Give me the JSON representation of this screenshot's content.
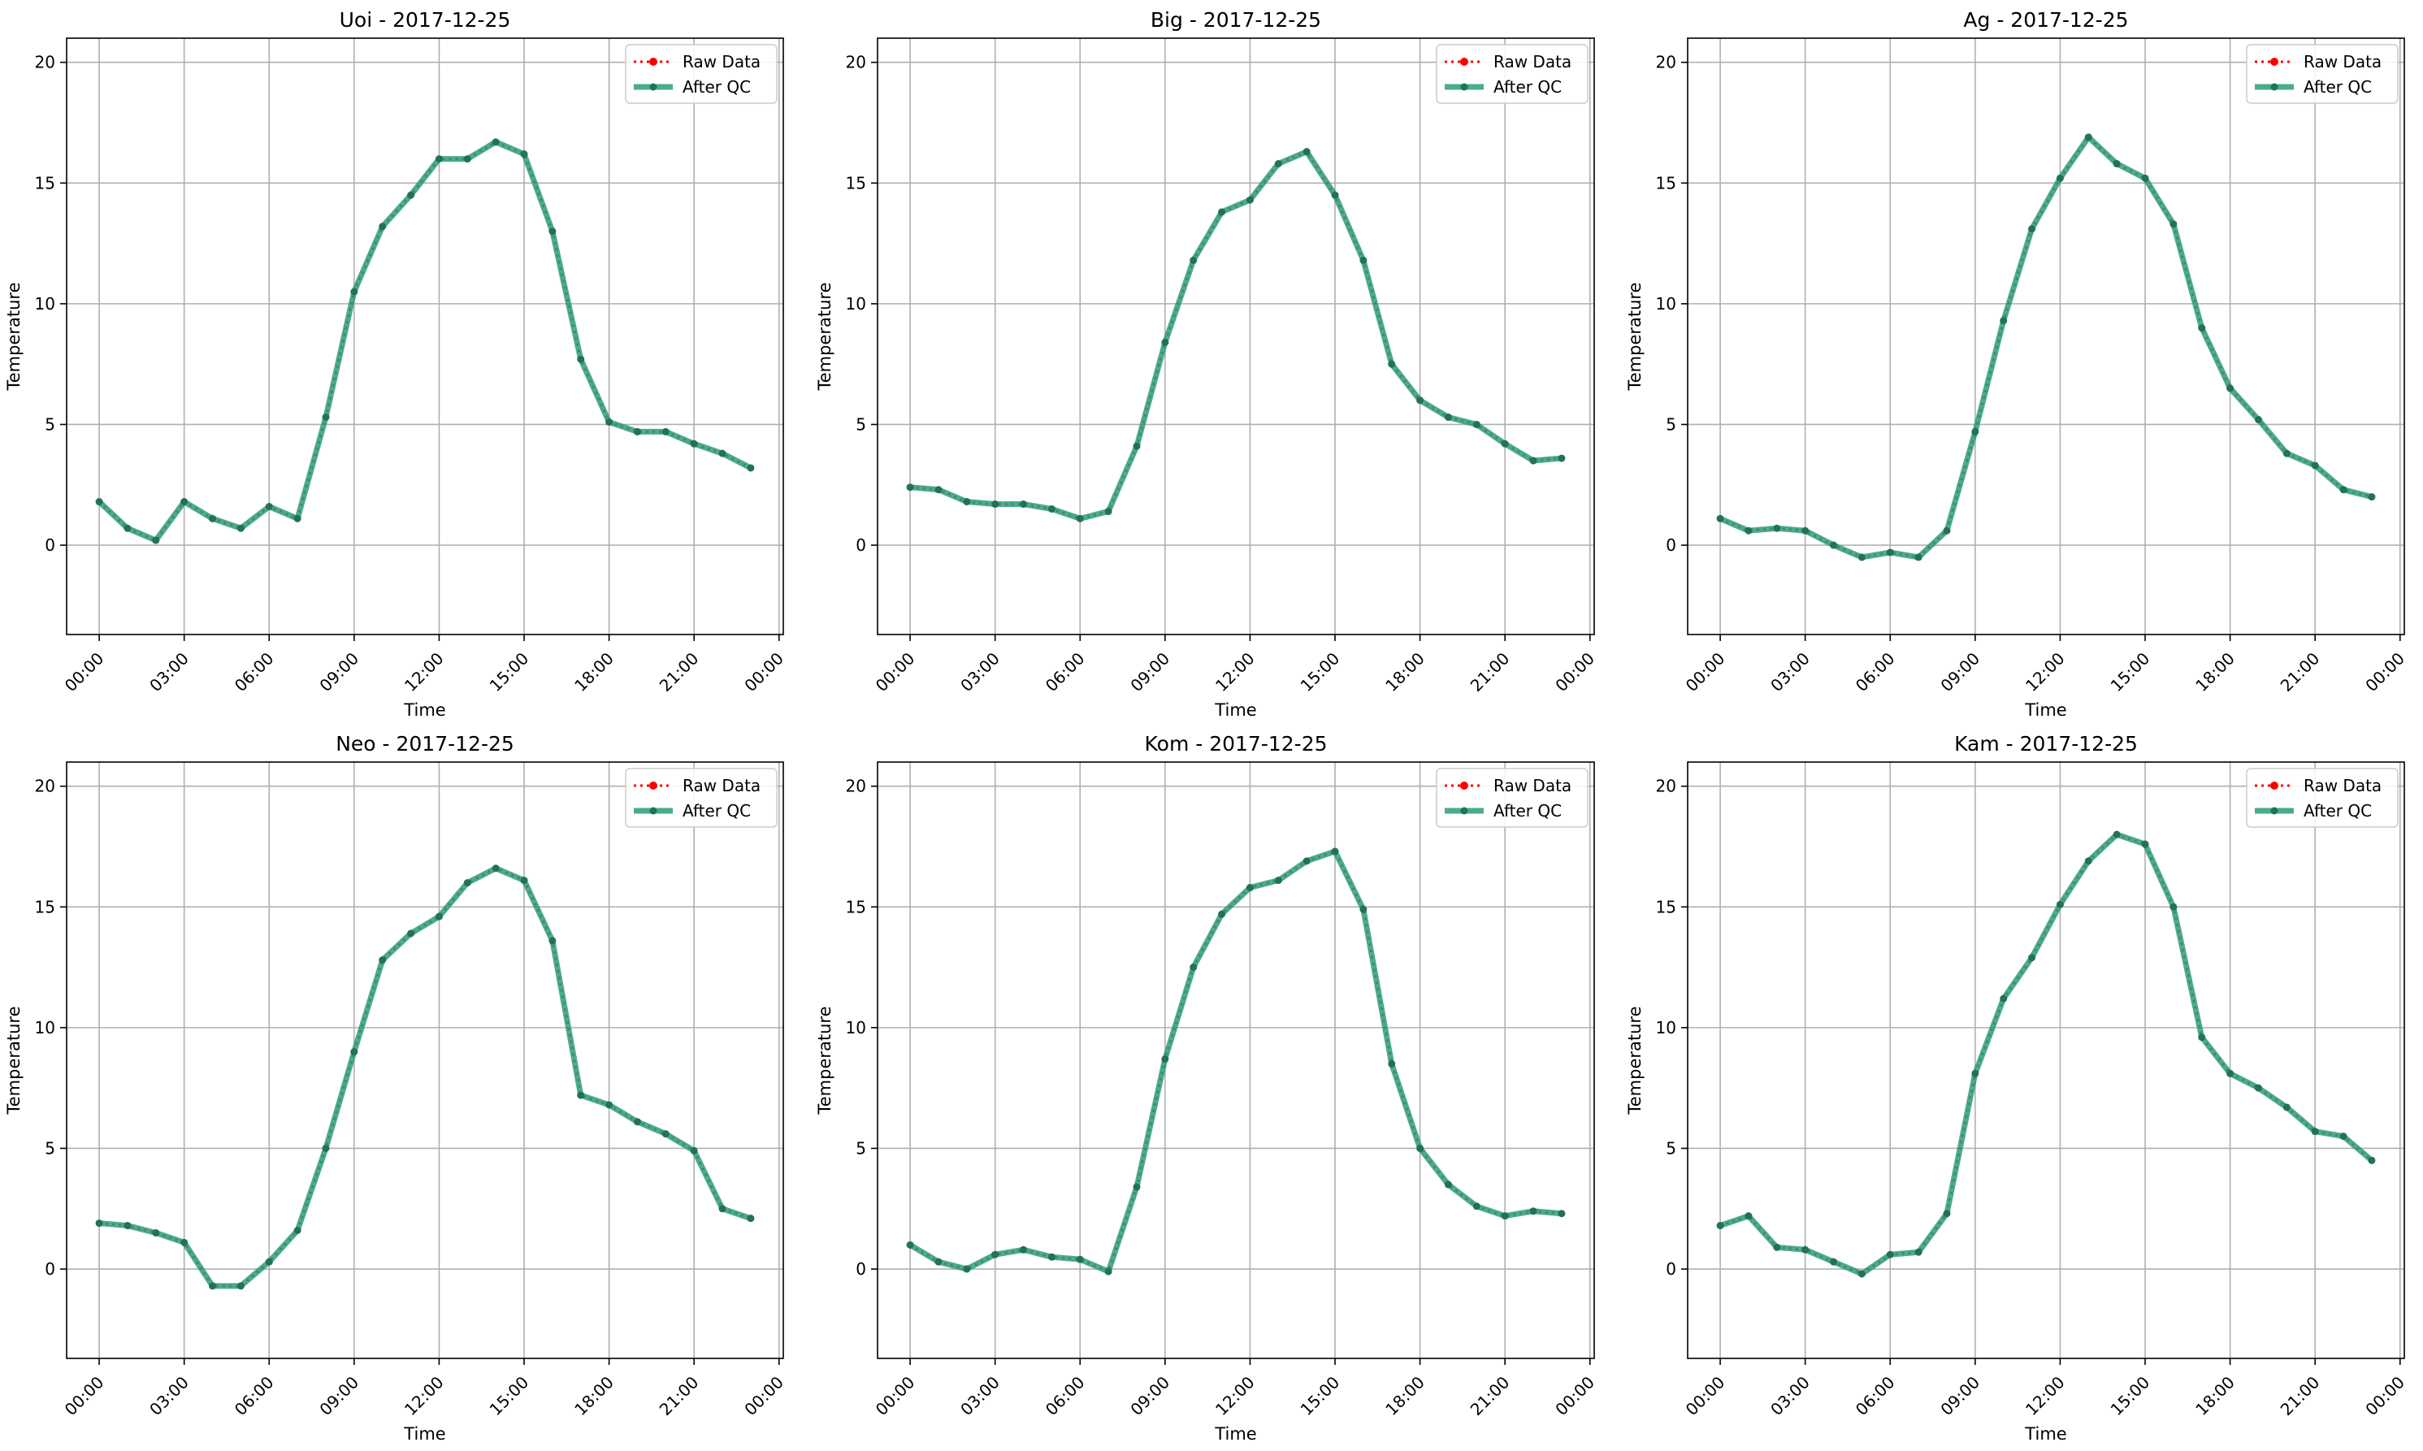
{
  "figure": {
    "time_label": "Time",
    "ylabel": "Temperature",
    "x_ticks": [
      "00:00",
      "03:00",
      "06:00",
      "09:00",
      "12:00",
      "15:00",
      "18:00",
      "21:00",
      "00:00"
    ],
    "y_ticks": [
      "0",
      "5",
      "10",
      "15",
      "20"
    ],
    "legend": {
      "raw": "Raw Data",
      "qc": "After QC"
    }
  },
  "colors": {
    "raw": "#ff0000",
    "qc": "#2a9d76",
    "marker": "#23715a",
    "grid": "#b0b0b0",
    "axes": "#000000"
  },
  "chart_data": [
    {
      "type": "line",
      "title": "Uoi - 2017-12-25",
      "xlabel": "Time",
      "ylabel": "Temperature",
      "x": [
        "00:00",
        "01:00",
        "02:00",
        "03:00",
        "04:00",
        "05:00",
        "06:00",
        "07:00",
        "08:00",
        "09:00",
        "10:00",
        "11:00",
        "12:00",
        "13:00",
        "14:00",
        "15:00",
        "16:00",
        "17:00",
        "18:00",
        "19:00",
        "20:00",
        "21:00",
        "22:00",
        "23:00"
      ],
      "x_ticks": [
        "00:00",
        "03:00",
        "06:00",
        "09:00",
        "12:00",
        "15:00",
        "18:00",
        "21:00",
        "00:00"
      ],
      "ylim": [
        -3.7,
        21
      ],
      "y_ticks": [
        0,
        5,
        10,
        15,
        20
      ],
      "grid": true,
      "legend_position": "top-right",
      "series": [
        {
          "name": "Raw Data",
          "values": [
            1.8,
            0.7,
            0.2,
            1.8,
            1.1,
            0.7,
            1.6,
            1.1,
            5.3,
            10.5,
            13.2,
            14.5,
            16.0,
            16.0,
            16.7,
            16.2,
            13.0,
            7.7,
            5.1,
            4.7,
            4.7,
            4.2,
            3.8,
            3.2
          ]
        },
        {
          "name": "After QC",
          "values": [
            1.8,
            0.7,
            0.2,
            1.8,
            1.1,
            0.7,
            1.6,
            1.1,
            5.3,
            10.5,
            13.2,
            14.5,
            16.0,
            16.0,
            16.7,
            16.2,
            13.0,
            7.7,
            5.1,
            4.7,
            4.7,
            4.2,
            3.8,
            3.2
          ]
        }
      ]
    },
    {
      "type": "line",
      "title": "Big - 2017-12-25",
      "xlabel": "Time",
      "ylabel": "Temperature",
      "x": [
        "00:00",
        "01:00",
        "02:00",
        "03:00",
        "04:00",
        "05:00",
        "06:00",
        "07:00",
        "08:00",
        "09:00",
        "10:00",
        "11:00",
        "12:00",
        "13:00",
        "14:00",
        "15:00",
        "16:00",
        "17:00",
        "18:00",
        "19:00",
        "20:00",
        "21:00",
        "22:00",
        "23:00"
      ],
      "x_ticks": [
        "00:00",
        "03:00",
        "06:00",
        "09:00",
        "12:00",
        "15:00",
        "18:00",
        "21:00",
        "00:00"
      ],
      "ylim": [
        -3.7,
        21
      ],
      "y_ticks": [
        0,
        5,
        10,
        15,
        20
      ],
      "grid": true,
      "legend_position": "top-right",
      "series": [
        {
          "name": "Raw Data",
          "values": [
            2.4,
            2.3,
            1.8,
            1.7,
            1.7,
            1.5,
            1.1,
            1.4,
            4.1,
            8.4,
            11.8,
            13.8,
            14.3,
            15.8,
            16.3,
            14.5,
            11.8,
            7.5,
            6.0,
            5.3,
            5.0,
            4.2,
            3.5,
            3.6
          ]
        },
        {
          "name": "After QC",
          "values": [
            2.4,
            2.3,
            1.8,
            1.7,
            1.7,
            1.5,
            1.1,
            1.4,
            4.1,
            8.4,
            11.8,
            13.8,
            14.3,
            15.8,
            16.3,
            14.5,
            11.8,
            7.5,
            6.0,
            5.3,
            5.0,
            4.2,
            3.5,
            3.6
          ]
        }
      ]
    },
    {
      "type": "line",
      "title": "Ag - 2017-12-25",
      "xlabel": "Time",
      "ylabel": "Temperature",
      "x": [
        "00:00",
        "01:00",
        "02:00",
        "03:00",
        "04:00",
        "05:00",
        "06:00",
        "07:00",
        "08:00",
        "09:00",
        "10:00",
        "11:00",
        "12:00",
        "13:00",
        "14:00",
        "15:00",
        "16:00",
        "17:00",
        "18:00",
        "19:00",
        "20:00",
        "21:00",
        "22:00",
        "23:00"
      ],
      "x_ticks": [
        "00:00",
        "03:00",
        "06:00",
        "09:00",
        "12:00",
        "15:00",
        "18:00",
        "21:00",
        "00:00"
      ],
      "ylim": [
        -3.7,
        21
      ],
      "y_ticks": [
        0,
        5,
        10,
        15,
        20
      ],
      "grid": true,
      "legend_position": "top-right",
      "series": [
        {
          "name": "Raw Data",
          "values": [
            1.1,
            0.6,
            0.7,
            0.6,
            0.0,
            -0.5,
            -0.3,
            -0.5,
            0.6,
            4.7,
            9.3,
            13.1,
            15.2,
            16.9,
            15.8,
            15.2,
            13.3,
            9.0,
            6.5,
            5.2,
            3.8,
            3.3,
            2.3,
            2.0
          ]
        },
        {
          "name": "After QC",
          "values": [
            1.1,
            0.6,
            0.7,
            0.6,
            0.0,
            -0.5,
            -0.3,
            -0.5,
            0.6,
            4.7,
            9.3,
            13.1,
            15.2,
            16.9,
            15.8,
            15.2,
            13.3,
            9.0,
            6.5,
            5.2,
            3.8,
            3.3,
            2.3,
            2.0
          ]
        }
      ]
    },
    {
      "type": "line",
      "title": "Neo - 2017-12-25",
      "xlabel": "Time",
      "ylabel": "Temperature",
      "x": [
        "00:00",
        "01:00",
        "02:00",
        "03:00",
        "04:00",
        "05:00",
        "06:00",
        "07:00",
        "08:00",
        "09:00",
        "10:00",
        "11:00",
        "12:00",
        "13:00",
        "14:00",
        "15:00",
        "16:00",
        "17:00",
        "18:00",
        "19:00",
        "20:00",
        "21:00",
        "22:00",
        "23:00"
      ],
      "x_ticks": [
        "00:00",
        "03:00",
        "06:00",
        "09:00",
        "12:00",
        "15:00",
        "18:00",
        "21:00",
        "00:00"
      ],
      "ylim": [
        -3.7,
        21
      ],
      "y_ticks": [
        0,
        5,
        10,
        15,
        20
      ],
      "grid": true,
      "legend_position": "top-right",
      "series": [
        {
          "name": "Raw Data",
          "values": [
            1.9,
            1.8,
            1.5,
            1.1,
            -0.7,
            -0.7,
            0.3,
            1.6,
            5.0,
            9.0,
            12.8,
            13.9,
            14.6,
            16.0,
            16.6,
            16.1,
            13.6,
            7.2,
            6.8,
            6.1,
            5.6,
            4.9,
            2.5,
            2.1
          ]
        },
        {
          "name": "After QC",
          "values": [
            1.9,
            1.8,
            1.5,
            1.1,
            -0.7,
            -0.7,
            0.3,
            1.6,
            5.0,
            9.0,
            12.8,
            13.9,
            14.6,
            16.0,
            16.6,
            16.1,
            13.6,
            7.2,
            6.8,
            6.1,
            5.6,
            4.9,
            2.5,
            2.1
          ]
        }
      ]
    },
    {
      "type": "line",
      "title": "Kom - 2017-12-25",
      "xlabel": "Time",
      "ylabel": "Temperature",
      "x": [
        "00:00",
        "01:00",
        "02:00",
        "03:00",
        "04:00",
        "05:00",
        "06:00",
        "07:00",
        "08:00",
        "09:00",
        "10:00",
        "11:00",
        "12:00",
        "13:00",
        "14:00",
        "15:00",
        "16:00",
        "17:00",
        "18:00",
        "19:00",
        "20:00",
        "21:00",
        "22:00",
        "23:00"
      ],
      "x_ticks": [
        "00:00",
        "03:00",
        "06:00",
        "09:00",
        "12:00",
        "15:00",
        "18:00",
        "21:00",
        "00:00"
      ],
      "ylim": [
        -3.7,
        21
      ],
      "y_ticks": [
        0,
        5,
        10,
        15,
        20
      ],
      "grid": true,
      "legend_position": "top-right",
      "series": [
        {
          "name": "Raw Data",
          "values": [
            1.0,
            0.3,
            0.0,
            0.6,
            0.8,
            0.5,
            0.4,
            -0.1,
            3.4,
            8.7,
            12.5,
            14.7,
            15.8,
            16.1,
            16.9,
            17.3,
            14.9,
            8.5,
            5.0,
            3.5,
            2.6,
            2.2,
            2.4,
            2.3
          ]
        },
        {
          "name": "After QC",
          "values": [
            1.0,
            0.3,
            0.0,
            0.6,
            0.8,
            0.5,
            0.4,
            -0.1,
            3.4,
            8.7,
            12.5,
            14.7,
            15.8,
            16.1,
            16.9,
            17.3,
            14.9,
            8.5,
            5.0,
            3.5,
            2.6,
            2.2,
            2.4,
            2.3
          ]
        }
      ]
    },
    {
      "type": "line",
      "title": "Kam - 2017-12-25",
      "xlabel": "Time",
      "ylabel": "Temperature",
      "x": [
        "00:00",
        "01:00",
        "02:00",
        "03:00",
        "04:00",
        "05:00",
        "06:00",
        "07:00",
        "08:00",
        "09:00",
        "10:00",
        "11:00",
        "12:00",
        "13:00",
        "14:00",
        "15:00",
        "16:00",
        "17:00",
        "18:00",
        "19:00",
        "20:00",
        "21:00",
        "22:00",
        "23:00"
      ],
      "x_ticks": [
        "00:00",
        "03:00",
        "06:00",
        "09:00",
        "12:00",
        "15:00",
        "18:00",
        "21:00",
        "00:00"
      ],
      "ylim": [
        -3.7,
        21
      ],
      "y_ticks": [
        0,
        5,
        10,
        15,
        20
      ],
      "grid": true,
      "legend_position": "top-right",
      "series": [
        {
          "name": "Raw Data",
          "values": [
            1.8,
            2.2,
            0.9,
            0.8,
            0.3,
            -0.2,
            0.6,
            0.7,
            2.3,
            8.1,
            11.2,
            12.9,
            15.1,
            16.9,
            18.0,
            17.6,
            15.0,
            9.6,
            8.1,
            7.5,
            6.7,
            5.7,
            5.5,
            4.5
          ]
        },
        {
          "name": "After QC",
          "values": [
            1.8,
            2.2,
            0.9,
            0.8,
            0.3,
            -0.2,
            0.6,
            0.7,
            2.3,
            8.1,
            11.2,
            12.9,
            15.1,
            16.9,
            18.0,
            17.6,
            15.0,
            9.6,
            8.1,
            7.5,
            6.7,
            5.7,
            5.5,
            4.5
          ]
        }
      ]
    }
  ]
}
